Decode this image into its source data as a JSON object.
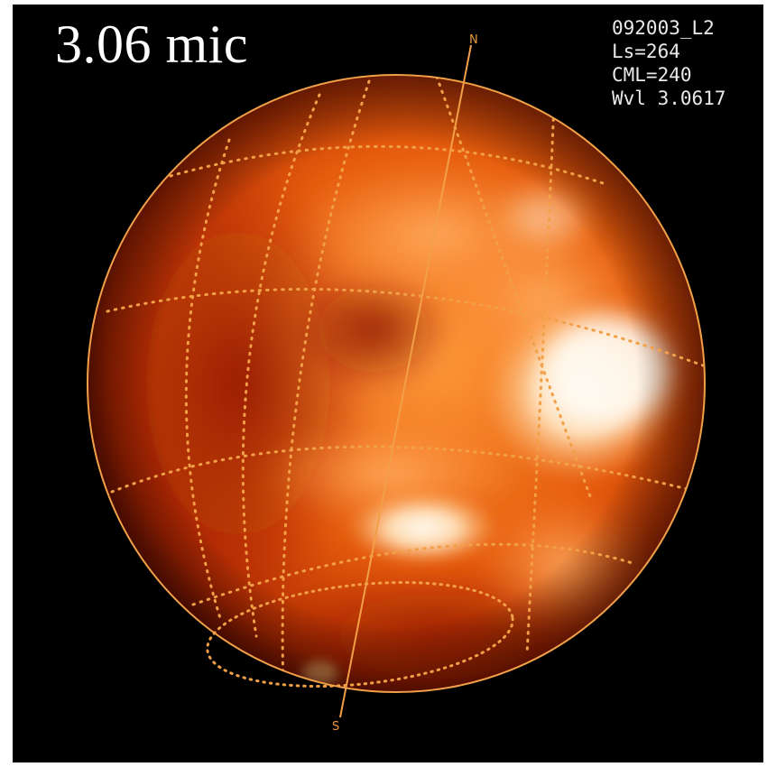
{
  "title": "3.06 mic",
  "metadata": {
    "obs_id": "092003_L2",
    "ls": "Ls=264",
    "cml": "CML=240",
    "wavelength": "Wvl 3.0617"
  },
  "poles": {
    "north": "N",
    "south": "S"
  },
  "colors": {
    "background": "#000000",
    "grid": "#f2a048",
    "planet_dark": "#7a1000",
    "planet_mid": "#e2560a",
    "planet_bright": "#fff4e4"
  }
}
